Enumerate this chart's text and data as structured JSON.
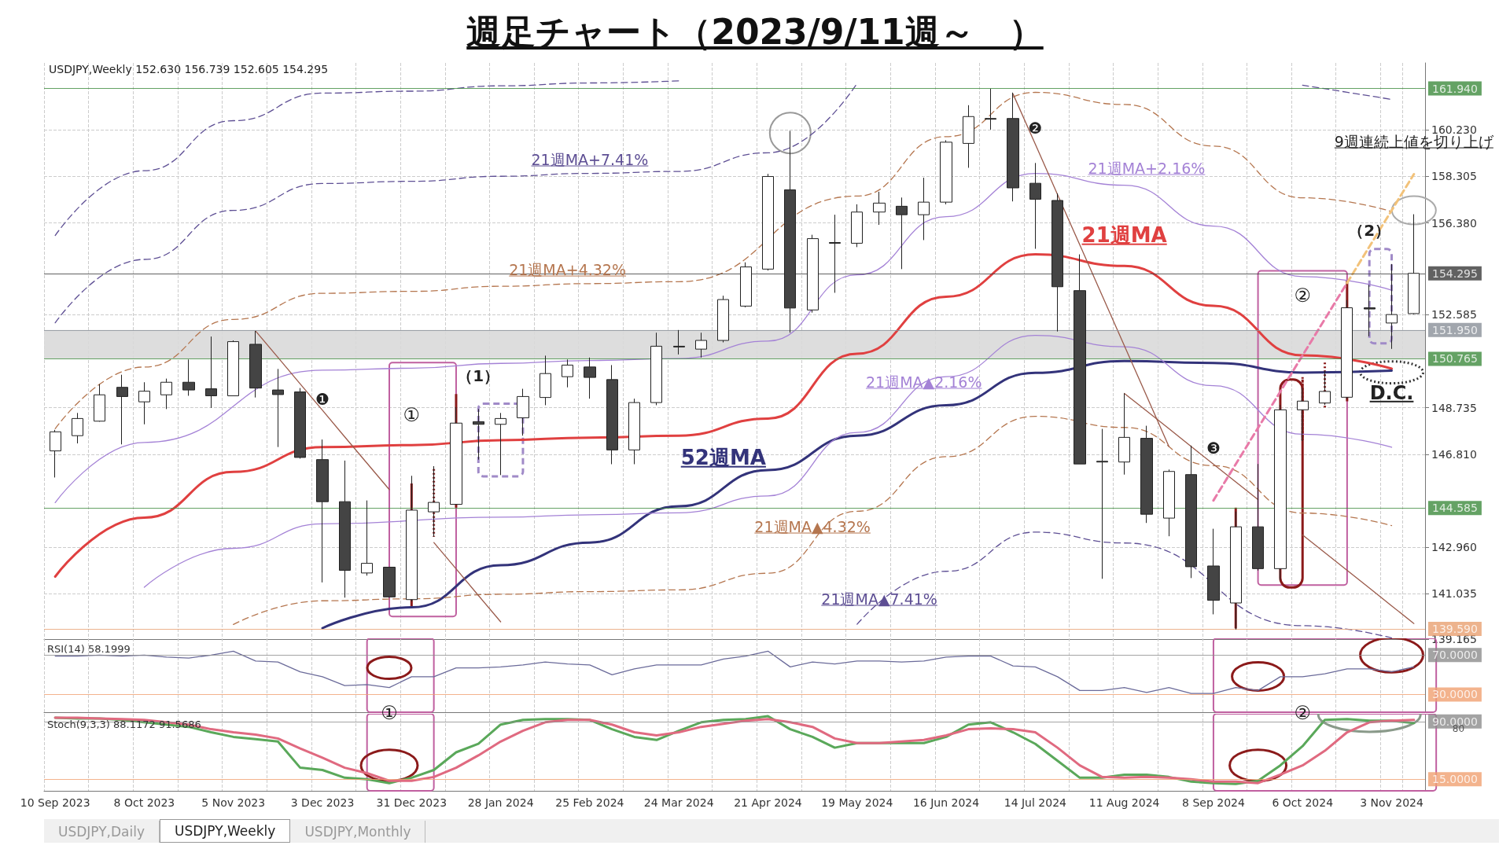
{
  "chart_data": [
    {
      "type": "candlestick",
      "title": "週足チャート（2023/9/11週～　）",
      "annotations": [
        "USDJPY,Weekly  152.630 156.739 152.605 154.295",
        "①",
        "（1）",
        "②",
        "（2）",
        "❶",
        "❷",
        "❸",
        "D.C.",
        "9週連続上値を切り上げ"
      ],
      "categories": [
        "10 Sep 2023",
        null,
        null,
        null,
        "8 Oct 2023",
        null,
        null,
        null,
        "5 Nov 2023",
        null,
        null,
        null,
        "3 Dec 2023",
        null,
        null,
        null,
        "31 Dec 2023",
        null,
        null,
        null,
        "28 Jan 2024",
        null,
        null,
        null,
        "25 Feb 2024",
        null,
        null,
        null,
        "24 Mar 2024",
        null,
        null,
        null,
        "21 Apr 2024",
        null,
        null,
        null,
        "19 May 2024",
        null,
        null,
        null,
        "16 Jun 2024",
        null,
        null,
        null,
        "14 Jul 2024",
        null,
        null,
        null,
        "11 Aug 2024",
        null,
        null,
        null,
        "8 Sep 2024",
        null,
        null,
        null,
        "6 Oct 2024",
        null,
        null,
        null,
        "3 Nov 2024",
        null
      ],
      "ohlc": [
        [
          146.95,
          147.82,
          145.85,
          147.74
        ],
        [
          147.58,
          148.52,
          147.26,
          148.29
        ],
        [
          148.18,
          149.71,
          148.16,
          149.27
        ],
        [
          149.58,
          150.1,
          147.22,
          149.2
        ],
        [
          148.98,
          149.79,
          148.05,
          149.42
        ],
        [
          149.27,
          149.94,
          148.68,
          149.79
        ],
        [
          149.79,
          150.73,
          149.23,
          149.47
        ],
        [
          149.52,
          151.68,
          148.73,
          149.23
        ],
        [
          149.23,
          151.52,
          149.23,
          151.47
        ],
        [
          151.36,
          151.91,
          149.16,
          149.55
        ],
        [
          149.47,
          150.34,
          147.11,
          149.28
        ],
        [
          149.39,
          149.55,
          146.63,
          146.68
        ],
        [
          146.59,
          147.42,
          141.51,
          144.85
        ],
        [
          144.85,
          146.55,
          140.88,
          142.01
        ],
        [
          141.9,
          144.9,
          141.79,
          142.3
        ],
        [
          142.14,
          142.14,
          140.88,
          140.91
        ],
        [
          140.8,
          145.92,
          140.72,
          144.5
        ],
        [
          144.43,
          146.32,
          143.4,
          144.82
        ],
        [
          144.74,
          148.76,
          144.74,
          148.1
        ],
        [
          148.16,
          148.68,
          146.59,
          148.05
        ],
        [
          148.05,
          148.52,
          145.95,
          148.29
        ],
        [
          148.32,
          149.52,
          147.58,
          149.2
        ],
        [
          149.16,
          150.89,
          148.84,
          150.15
        ],
        [
          150.02,
          150.73,
          149.58,
          150.5
        ],
        [
          150.42,
          150.81,
          149.11,
          149.99
        ],
        [
          149.9,
          150.5,
          146.4,
          146.99
        ],
        [
          146.99,
          149.11,
          146.4,
          148.95
        ],
        [
          148.95,
          151.84,
          148.84,
          151.28
        ],
        [
          151.28,
          151.95,
          150.94,
          151.25
        ],
        [
          151.16,
          151.84,
          150.81,
          151.52
        ],
        [
          151.52,
          153.37,
          151.44,
          153.21
        ],
        [
          152.94,
          154.75,
          152.89,
          154.56
        ],
        [
          154.47,
          158.41,
          154.41,
          158.3
        ],
        [
          157.75,
          160.19,
          151.84,
          152.86
        ],
        [
          152.78,
          155.89,
          152.67,
          155.73
        ],
        [
          155.57,
          156.72,
          153.49,
          155.54
        ],
        [
          155.54,
          157.15,
          155.38,
          156.83
        ],
        [
          156.83,
          157.67,
          156.3,
          157.2
        ],
        [
          157.07,
          157.43,
          154.47,
          156.72
        ],
        [
          156.72,
          158.25,
          155.67,
          157.24
        ],
        [
          157.24,
          159.8,
          157.15,
          159.72
        ],
        [
          159.67,
          161.25,
          158.66,
          160.78
        ],
        [
          160.7,
          161.93,
          160.24,
          160.67
        ],
        [
          160.7,
          161.77,
          157.27,
          157.83
        ],
        [
          158.02,
          158.86,
          155.31,
          157.36
        ],
        [
          157.31,
          157.6,
          151.89,
          153.74
        ],
        [
          153.58,
          155.08,
          146.41,
          146.41
        ],
        [
          146.52,
          147.86,
          141.66,
          146.49
        ],
        [
          146.49,
          149.33,
          145.97,
          147.51
        ],
        [
          147.47,
          147.99,
          143.97,
          144.33
        ],
        [
          144.17,
          146.18,
          143.42,
          146.1
        ],
        [
          145.97,
          147.17,
          141.69,
          142.16
        ],
        [
          142.19,
          143.73,
          140.19,
          140.77
        ],
        [
          140.66,
          144.44,
          139.56,
          143.81
        ],
        [
          143.81,
          146.41,
          142.0,
          142.08
        ],
        [
          142.08,
          148.85,
          141.61,
          148.65
        ],
        [
          148.65,
          149.56,
          147.36,
          149.01
        ],
        [
          148.93,
          150.27,
          148.85,
          149.41
        ],
        [
          149.17,
          153.19,
          149.09,
          152.87
        ],
        [
          152.87,
          153.82,
          151.69,
          152.82
        ],
        [
          152.24,
          154.68,
          151.17,
          152.59
        ],
        [
          152.63,
          156.739,
          152.605,
          154.295
        ]
      ],
      "series": [
        {
          "type": "line",
          "name": "21週MA",
          "color": "#e04040",
          "line_style": "solid",
          "x": [
            "10 Sep 2023",
            "8 Oct 2023",
            "5 Nov 2023",
            "3 Dec 2023",
            "31 Dec 2023",
            "28 Jan 2024",
            "25 Feb 2024",
            "24 Mar 2024",
            "21 Apr 2024",
            "19 May 2024",
            "16 Jun 2024",
            "14 Jul 2024",
            "11 Aug 2024",
            "8 Sep 2024",
            "6 Oct 2024",
            "3 Nov 2024"
          ],
          "values": [
            141.75,
            144.19,
            146.08,
            147.11,
            147.19,
            147.39,
            147.5,
            147.58,
            148.29,
            150.97,
            153.33,
            155.08,
            154.6,
            152.95,
            150.9,
            150.35
          ]
        },
        {
          "type": "line",
          "name": "52週MA",
          "color": "#33337a",
          "line_style": "solid",
          "x": [
            "3 Dec 2023",
            "31 Dec 2023",
            "28 Jan 2024",
            "25 Feb 2024",
            "24 Mar 2024",
            "21 Apr 2024",
            "19 May 2024",
            "16 Jun 2024",
            "14 Jul 2024",
            "11 Aug 2024",
            "8 Sep 2024",
            "6 Oct 2024",
            "3 Nov 2024"
          ],
          "values": [
            139.62,
            140.48,
            142.22,
            143.16,
            144.66,
            146.16,
            147.58,
            148.84,
            150.18,
            150.67,
            150.59,
            150.19,
            150.27
          ]
        },
        {
          "type": "line",
          "name": "21週MA+2.16%",
          "color": "#a482d6",
          "line_style": "solid",
          "x": [
            "10 Sep 2023",
            "8 Oct 2023",
            "3 Dec 2023",
            "31 Dec 2023",
            "28 Jan 2024",
            "25 Feb 2024",
            "24 Mar 2024",
            "21 Apr 2024",
            "19 May 2024",
            "16 Jun 2024",
            "14 Jul 2024",
            "11 Aug 2024",
            "8 Sep 2024",
            "6 Oct 2024",
            "3 Nov 2024"
          ],
          "values": [
            144.81,
            147.3,
            150.29,
            150.37,
            150.57,
            150.69,
            150.77,
            151.49,
            154.23,
            156.64,
            158.43,
            157.94,
            156.25,
            154.16,
            153.6
          ]
        },
        {
          "type": "line",
          "name": "21週MA▲2.16%",
          "color": "#a482d6",
          "line_style": "solid",
          "x": [
            "8 Oct 2023",
            "5 Nov 2023",
            "3 Dec 2023",
            "28 Jan 2024",
            "25 Feb 2024",
            "24 Mar 2024",
            "21 Apr 2024",
            "19 May 2024",
            "16 Jun 2024",
            "14 Jul 2024",
            "11 Aug 2024",
            "8 Sep 2024",
            "6 Oct 2024",
            "3 Nov 2024"
          ],
          "values": [
            141.31,
            142.92,
            143.93,
            144.21,
            144.31,
            144.39,
            145.09,
            147.71,
            150.02,
            151.73,
            151.26,
            149.65,
            147.64,
            147.1
          ]
        },
        {
          "type": "line",
          "name": "21週MA+4.32%",
          "color": "#b5764f",
          "line_style": "dashed",
          "x": [
            "10 Sep 2023",
            "8 Oct 2023",
            "5 Nov 2023",
            "3 Dec 2023",
            "31 Dec 2023",
            "28 Jan 2024",
            "25 Feb 2024",
            "24 Mar 2024",
            "19 May 2024",
            "16 Jun 2024",
            "14 Jul 2024",
            "11 Aug 2024",
            "8 Sep 2024",
            "6 Oct 2024",
            "3 Nov 2024"
          ],
          "values": [
            147.87,
            150.42,
            152.39,
            153.47,
            153.55,
            153.76,
            153.87,
            153.95,
            157.49,
            159.95,
            161.78,
            161.28,
            159.56,
            157.42,
            156.85
          ]
        },
        {
          "type": "line",
          "name": "21週MA▲4.32%",
          "color": "#b5764f",
          "line_style": "dashed",
          "x": [
            "5 Nov 2023",
            "3 Dec 2023",
            "31 Dec 2023",
            "28 Jan 2024",
            "25 Feb 2024",
            "24 Mar 2024",
            "21 Apr 2024",
            "19 May 2024",
            "16 Jun 2024",
            "14 Jul 2024",
            "11 Aug 2024",
            "8 Sep 2024",
            "6 Oct 2024",
            "3 Nov 2024"
          ],
          "values": [
            139.77,
            140.75,
            140.83,
            141.02,
            141.13,
            141.2,
            141.89,
            144.45,
            146.71,
            148.38,
            147.92,
            146.34,
            144.38,
            143.86
          ]
        },
        {
          "type": "line",
          "name": "21週MA+7.41%",
          "color": "#5e4f94",
          "line_style": "dashed",
          "x": [
            "10 Sep 2023",
            "8 Oct 2023",
            "5 Nov 2023",
            "3 Dec 2023",
            "31 Dec 2023",
            "28 Jan 2024",
            "25 Feb 2024",
            "24 Mar 2024",
            "21 Apr 2024",
            "19 May 2024",
            "16 Jun 2024",
            "14 Jul 2024",
            "11 Aug 2024",
            "8 Sep 2024",
            "6 Oct 2024",
            "3 Nov 2024"
          ],
          "values": [
            152.25,
            154.87,
            156.9,
            158.01,
            158.1,
            158.31,
            158.43,
            158.51,
            159.28,
            162.15,
            null,
            null,
            null,
            null,
            162.08,
            161.49
          ]
        },
        {
          "type": "line",
          "name": "21週MA▲7.41%",
          "color": "#5e4f94",
          "line_style": "dashed",
          "x": [
            "19 May 2024",
            "16 Jun 2024",
            "14 Jul 2024",
            "11 Aug 2024",
            "6 Oct 2024",
            "3 Nov 2024"
          ],
          "values": [
            139.78,
            141.97,
            143.59,
            143.14,
            139.72,
            139.21
          ]
        },
        {
          "type": "line",
          "color": "#5e4f94",
          "line_style": "dashed",
          "x": [
            "10 Sep 2023",
            "8 Oct 2023",
            "5 Nov 2023",
            "3 Dec 2023",
            "31 Dec 2023",
            "28 Jan 2024",
            "25 Feb 2024",
            "24 Mar 2024"
          ],
          "values": [
            155.86,
            158.54,
            160.61,
            161.75,
            161.83,
            162.05,
            162.17,
            162.26
          ]
        },
        {
          "type": "line",
          "color": "#9a5a4a",
          "line_style": "solid",
          "values": [
            null,
            null,
            null,
            null,
            null,
            null,
            null,
            null,
            null,
            151.91,
            150.82,
            149.72,
            148.63,
            147.53,
            146.44,
            145.35,
            null,
            143.16,
            142.07,
            140.97,
            139.88,
            null,
            null,
            null,
            null,
            null,
            null,
            null,
            null,
            null,
            null,
            null,
            null,
            null,
            null,
            null,
            null,
            null,
            null,
            null,
            null,
            null,
            null,
            null,
            null,
            null,
            null,
            null,
            null,
            null,
            null,
            null,
            null,
            null,
            null,
            null,
            null,
            null,
            null,
            null,
            null,
            null
          ]
        },
        {
          "type": "line",
          "color": "#9a5a4a",
          "line_style": "solid",
          "values": [
            null,
            null,
            null,
            null,
            null,
            null,
            null,
            null,
            null,
            null,
            null,
            null,
            null,
            null,
            null,
            null,
            null,
            null,
            null,
            null,
            null,
            null,
            null,
            null,
            null,
            null,
            null,
            null,
            null,
            null,
            null,
            null,
            null,
            null,
            null,
            null,
            null,
            null,
            null,
            null,
            null,
            null,
            null,
            161.72,
            159.64,
            157.55,
            155.47,
            153.38,
            151.3,
            149.22,
            147.13,
            null,
            null,
            null,
            null,
            null,
            null,
            null,
            null,
            null,
            null,
            null
          ]
        },
        {
          "type": "line",
          "color": "#9a5a4a",
          "line_style": "solid",
          "values": [
            null,
            null,
            null,
            null,
            null,
            null,
            null,
            null,
            null,
            null,
            null,
            null,
            null,
            null,
            null,
            null,
            null,
            null,
            null,
            null,
            null,
            null,
            null,
            null,
            null,
            null,
            null,
            null,
            null,
            null,
            null,
            null,
            null,
            null,
            null,
            null,
            null,
            null,
            null,
            null,
            null,
            null,
            null,
            null,
            null,
            null,
            null,
            null,
            149.33,
            148.6,
            147.87,
            147.13,
            146.4,
            145.67,
            144.94,
            null,
            143.47,
            142.74,
            142.01,
            141.28,
            140.54,
            139.81
          ]
        },
        {
          "type": "line",
          "color": "#e87aa8",
          "line_style": "dashed",
          "values": [
            null,
            null,
            null,
            null,
            null,
            null,
            null,
            null,
            null,
            null,
            null,
            null,
            null,
            null,
            null,
            null,
            null,
            null,
            null,
            null,
            null,
            null,
            null,
            null,
            null,
            null,
            null,
            null,
            null,
            null,
            null,
            null,
            null,
            null,
            null,
            null,
            null,
            null,
            null,
            null,
            null,
            null,
            null,
            null,
            null,
            null,
            null,
            null,
            null,
            null,
            null,
            null,
            144.9,
            146.4,
            147.9,
            149.4,
            150.9,
            152.4,
            153.9,
            null,
            null,
            null
          ]
        },
        {
          "type": "line",
          "color": "#f2c27a",
          "line_style": "dashed",
          "values": [
            null,
            null,
            null,
            null,
            null,
            null,
            null,
            null,
            null,
            null,
            null,
            null,
            null,
            null,
            null,
            null,
            null,
            null,
            null,
            null,
            null,
            null,
            null,
            null,
            null,
            null,
            null,
            null,
            null,
            null,
            null,
            null,
            null,
            null,
            null,
            null,
            null,
            null,
            null,
            null,
            null,
            null,
            null,
            null,
            null,
            null,
            null,
            null,
            null,
            null,
            null,
            null,
            null,
            null,
            null,
            null,
            null,
            null,
            153.9,
            155.4,
            156.9,
            158.4
          ]
        }
      ],
      "ylim": [
        139.165,
        163.0
      ],
      "yticks": [
        {
          "value": 160.23,
          "label": "160.230"
        },
        {
          "value": 158.305,
          "label": "158.305"
        },
        {
          "value": 156.38,
          "label": "156.380"
        },
        {
          "value": 152.585,
          "label": "152.585"
        },
        {
          "value": 148.735,
          "label": "148.735"
        },
        {
          "value": 146.81,
          "label": "146.810"
        },
        {
          "value": 142.96,
          "label": "142.960"
        },
        {
          "value": 141.035,
          "label": "141.035"
        },
        {
          "value": 139.165,
          "label": "139.165"
        }
      ],
      "ref_lines": [
        {
          "axis": "y",
          "value": 161.94,
          "label": "161.940",
          "color": "#3d8b3d"
        },
        {
          "axis": "y",
          "value": 154.295,
          "label": "154.295",
          "color": "#3a3a3a"
        },
        {
          "axis": "y",
          "value": 151.95,
          "label": "151.950",
          "color": "#8a9099"
        },
        {
          "axis": "y",
          "value": 150.765,
          "label": "150.765",
          "color": "#3d8b3d"
        },
        {
          "axis": "y",
          "value": 144.585,
          "label": "144.585",
          "color": "#3d8b3d"
        },
        {
          "axis": "y",
          "value": 139.59,
          "label": "139.590",
          "color": "#e8a070"
        }
      ],
      "bands": [
        {
          "axis": "y",
          "from": 150.765,
          "to": 151.95,
          "color": "#d9d9d9"
        }
      ],
      "grid": true,
      "tick_labels": "y"
    },
    {
      "type": "line",
      "title": "RSI(14) 58.1999",
      "categories": [
        "10 Sep 2023",
        null,
        null,
        null,
        "8 Oct 2023",
        null,
        null,
        null,
        "5 Nov 2023",
        null,
        null,
        null,
        "3 Dec 2023",
        null,
        null,
        null,
        "31 Dec 2023",
        null,
        null,
        null,
        "28 Jan 2024",
        null,
        null,
        null,
        "25 Feb 2024",
        null,
        null,
        null,
        "24 Mar 2024",
        null,
        null,
        null,
        "21 Apr 2024",
        null,
        null,
        null,
        "19 May 2024",
        null,
        null,
        null,
        "16 Jun 2024",
        null,
        null,
        null,
        "14 Jul 2024",
        null,
        null,
        null,
        "11 Aug 2024",
        null,
        null,
        null,
        "8 Sep 2024",
        null,
        null,
        null,
        "6 Oct 2024",
        null,
        null,
        null,
        "3 Nov 2024",
        null
      ],
      "color": "#6b6b9a",
      "values": [
        69,
        69,
        70,
        69,
        70,
        68,
        67,
        70,
        74,
        64,
        63,
        53,
        48,
        39,
        40,
        37,
        48,
        48,
        57,
        57,
        58,
        60,
        63,
        61,
        60,
        50,
        56,
        60,
        60,
        60,
        66,
        69,
        74,
        58,
        63,
        61,
        64,
        64,
        63,
        64,
        68,
        69,
        69,
        59,
        58,
        48,
        34,
        34,
        37,
        32,
        37,
        31,
        31,
        37,
        34,
        48,
        48,
        51,
        56,
        56,
        53,
        58
      ],
      "ylim": [
        12,
        87
      ],
      "ref_lines": [
        {
          "axis": "y",
          "value": 70,
          "label": "70.0000",
          "color": "#8c8c8c"
        },
        {
          "axis": "y",
          "value": 30,
          "label": "30.0000",
          "color": "#f0a070"
        }
      ],
      "grid": "x",
      "tick_labels": false
    },
    {
      "type": "line",
      "title": "Stoch(9,3,3) 88.1172 91.5686",
      "annotations": [
        "①",
        "②",
        "80",
        "USDJPY,Daily",
        "USDJPY,Weekly",
        "USDJPY,Monthly"
      ],
      "categories": [
        "10 Sep 2023",
        null,
        null,
        null,
        "8 Oct 2023",
        null,
        null,
        null,
        "5 Nov 2023",
        null,
        null,
        null,
        "3 Dec 2023",
        null,
        null,
        null,
        "31 Dec 2023",
        null,
        null,
        null,
        "28 Jan 2024",
        null,
        null,
        null,
        "25 Feb 2024",
        null,
        null,
        null,
        "24 Mar 2024",
        null,
        null,
        null,
        "21 Apr 2024",
        null,
        null,
        null,
        "19 May 2024",
        null,
        null,
        null,
        "16 Jun 2024",
        null,
        null,
        null,
        "14 Jul 2024",
        null,
        null,
        null,
        "11 Aug 2024",
        null,
        null,
        null,
        "8 Sep 2024",
        null,
        null,
        null,
        "6 Oct 2024",
        null,
        null,
        null,
        "3 Nov 2024",
        null
      ],
      "series": [
        {
          "color": "#5aa85a",
          "values": [
            95,
            94,
            94,
            92,
            89,
            86,
            83,
            76,
            70,
            67,
            64,
            30,
            27,
            17,
            15,
            10,
            17,
            27,
            50,
            61,
            86,
            92,
            93,
            93,
            92,
            80,
            70,
            66,
            78,
            89,
            92,
            93,
            97,
            80,
            70,
            56,
            62,
            62,
            62,
            62,
            70,
            86,
            89,
            76,
            61,
            39,
            17,
            17,
            21,
            21,
            18,
            12,
            10,
            9,
            13,
            33,
            58,
            92,
            93,
            91,
            91,
            88
          ]
        },
        {
          "color": "#e06a80",
          "values": [
            95,
            95,
            94,
            93,
            92,
            89,
            86,
            80,
            76,
            73,
            68,
            55,
            43,
            30,
            23,
            13,
            13,
            18,
            30,
            46,
            64,
            78,
            89,
            92,
            92,
            86,
            76,
            72,
            76,
            83,
            87,
            91,
            93,
            89,
            83,
            68,
            62,
            62,
            64,
            66,
            72,
            80,
            81,
            80,
            76,
            56,
            33,
            18,
            17,
            18,
            17,
            15,
            12,
            12,
            10,
            21,
            33,
            52,
            76,
            89,
            91,
            92
          ]
        }
      ],
      "ylim": [
        0,
        100
      ],
      "ref_lines": [
        {
          "axis": "y",
          "value": 90,
          "label": "90.0000",
          "color": "#8c8c8c"
        },
        {
          "axis": "y",
          "value": 15,
          "label": "15.0000",
          "color": "#f0a070"
        }
      ],
      "grid": "x"
    }
  ]
}
